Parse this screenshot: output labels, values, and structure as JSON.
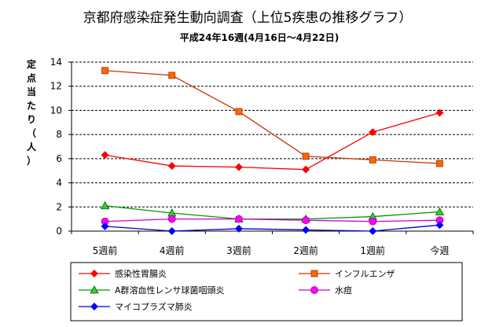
{
  "chart_data": {
    "type": "line",
    "title": "京都府感染症発生動向調査（上位5疾患の推移グラフ）",
    "subtitle": "平成24年16週(4月16日～4月22日)",
    "ylabel_chars": [
      "定",
      "点",
      "当",
      "た",
      "り",
      "（",
      "人",
      "）"
    ],
    "categories": [
      "5週前",
      "4週前",
      "3週前",
      "2週前",
      "1週前",
      "今週"
    ],
    "ylim": [
      0,
      14
    ],
    "yticks": [
      0,
      2,
      4,
      6,
      8,
      10,
      12,
      14
    ],
    "grid": "horizontal-dashed",
    "legend_position": "bottom",
    "series": [
      {
        "name": "感染性胃腸炎",
        "values": [
          6.3,
          5.4,
          5.3,
          5.1,
          8.2,
          9.8
        ],
        "color": "#ff0000",
        "marker": "diamond",
        "marker_color": "#ff0000"
      },
      {
        "name": "インフルエンザ",
        "values": [
          13.3,
          12.9,
          9.9,
          6.2,
          5.9,
          5.6
        ],
        "color": "#cc3300",
        "marker": "square",
        "marker_color": "#ff6600"
      },
      {
        "name": "A群溶血性レンサ球菌咽頭炎",
        "values": [
          2.1,
          1.5,
          1.0,
          1.0,
          1.2,
          1.6
        ],
        "color": "#009900",
        "marker": "triangle",
        "marker_color": "#33cc33"
      },
      {
        "name": "水痘",
        "values": [
          0.8,
          1.0,
          1.0,
          0.9,
          0.8,
          0.9
        ],
        "color": "#cc00cc",
        "marker": "circle",
        "marker_color": "#ff00ff"
      },
      {
        "name": "マイコプラズマ肺炎",
        "values": [
          0.4,
          0.0,
          0.2,
          0.1,
          0.0,
          0.5
        ],
        "color": "#0000cc",
        "marker": "diamond",
        "marker_color": "#0000ff"
      }
    ]
  }
}
